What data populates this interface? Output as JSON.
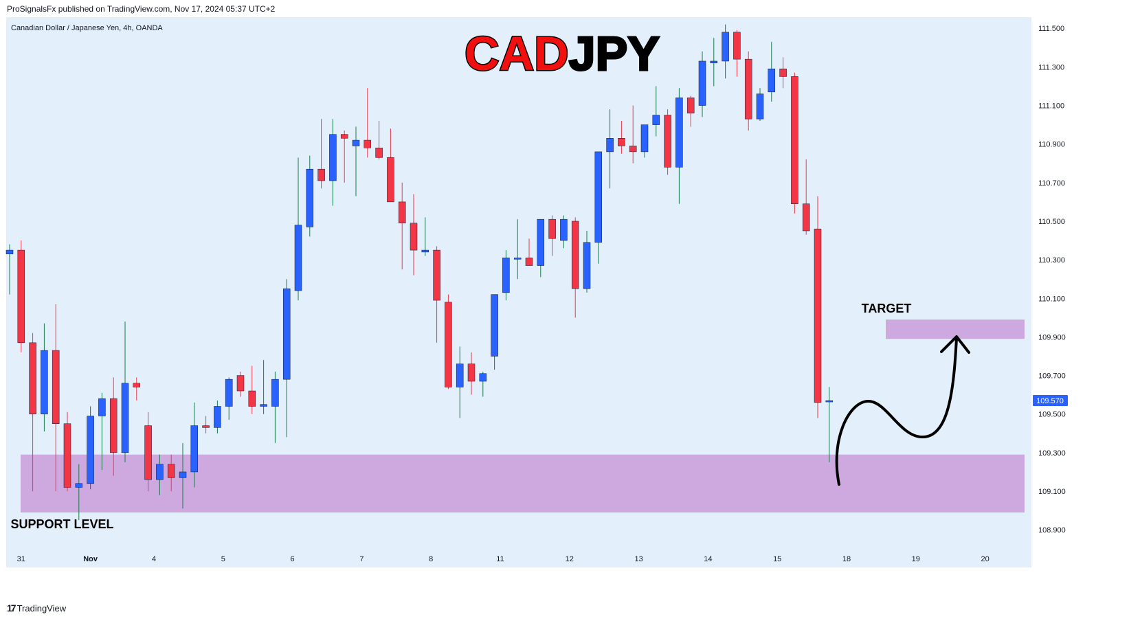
{
  "header": {
    "publish_line": "ProSignalsFx published on TradingView.com, Nov 17, 2024 05:37 UTC+2"
  },
  "footer": {
    "brand": "TradingView"
  },
  "colors": {
    "background": "#e3effa",
    "up": "#2962ff",
    "down": "#f23645",
    "zone": "#cda9e0",
    "price_tag": "#2962ff"
  },
  "chart_data": {
    "type": "candlestick",
    "symbol_line": "Canadian Dollar / Japanese Yen, 4h, OANDA",
    "title_parts": [
      {
        "text": "CAD",
        "color": "#f01010"
      },
      {
        "text": "JPY",
        "color": "#000000"
      }
    ],
    "y_ticks": [
      "111.500",
      "111.300",
      "111.100",
      "110.900",
      "110.700",
      "110.500",
      "110.300",
      "110.100",
      "109.900",
      "109.700",
      "109.500",
      "109.300",
      "109.100",
      "108.900"
    ],
    "ylim": [
      108.84,
      111.54
    ],
    "x_ticks": [
      {
        "label": "31",
        "index": 1
      },
      {
        "label": "Nov",
        "index": 7
      },
      {
        "label": "4",
        "index": 12.5
      },
      {
        "label": "5",
        "index": 18.5
      },
      {
        "label": "6",
        "index": 24.5
      },
      {
        "label": "7",
        "index": 30.5
      },
      {
        "label": "8",
        "index": 36.5
      },
      {
        "label": "11",
        "index": 42.5
      },
      {
        "label": "12",
        "index": 48.5
      },
      {
        "label": "13",
        "index": 54.5
      },
      {
        "label": "14",
        "index": 60.5
      },
      {
        "label": "15",
        "index": 66.5
      },
      {
        "label": "18",
        "index": 72.5
      },
      {
        "label": "19",
        "index": 78.5
      },
      {
        "label": "20",
        "index": 84.5
      }
    ],
    "candles": [
      {
        "o": 110.33,
        "h": 110.38,
        "l": 110.12,
        "c": 110.35
      },
      {
        "o": 110.35,
        "h": 110.4,
        "l": 109.82,
        "c": 109.87
      },
      {
        "o": 109.87,
        "h": 109.92,
        "l": 109.1,
        "c": 109.5
      },
      {
        "o": 109.5,
        "h": 109.97,
        "l": 109.41,
        "c": 109.83
      },
      {
        "o": 109.83,
        "h": 110.07,
        "l": 109.1,
        "c": 109.45
      },
      {
        "o": 109.45,
        "h": 109.51,
        "l": 109.1,
        "c": 109.12
      },
      {
        "o": 109.12,
        "h": 109.24,
        "l": 108.95,
        "c": 109.14
      },
      {
        "o": 109.14,
        "h": 109.54,
        "l": 109.11,
        "c": 109.49
      },
      {
        "o": 109.49,
        "h": 109.61,
        "l": 109.21,
        "c": 109.58
      },
      {
        "o": 109.58,
        "h": 109.69,
        "l": 109.18,
        "c": 109.3
      },
      {
        "o": 109.3,
        "h": 109.98,
        "l": 109.25,
        "c": 109.66
      },
      {
        "o": 109.66,
        "h": 109.69,
        "l": 109.57,
        "c": 109.64
      },
      {
        "o": 109.44,
        "h": 109.51,
        "l": 109.1,
        "c": 109.16
      },
      {
        "o": 109.16,
        "h": 109.29,
        "l": 109.08,
        "c": 109.24
      },
      {
        "o": 109.24,
        "h": 109.29,
        "l": 109.1,
        "c": 109.17
      },
      {
        "o": 109.17,
        "h": 109.35,
        "l": 109.01,
        "c": 109.2
      },
      {
        "o": 109.2,
        "h": 109.56,
        "l": 109.12,
        "c": 109.44
      },
      {
        "o": 109.44,
        "h": 109.49,
        "l": 109.4,
        "c": 109.43
      },
      {
        "o": 109.43,
        "h": 109.57,
        "l": 109.4,
        "c": 109.54
      },
      {
        "o": 109.54,
        "h": 109.69,
        "l": 109.47,
        "c": 109.68
      },
      {
        "o": 109.7,
        "h": 109.72,
        "l": 109.59,
        "c": 109.62
      },
      {
        "o": 109.62,
        "h": 109.75,
        "l": 109.5,
        "c": 109.54
      },
      {
        "o": 109.54,
        "h": 109.78,
        "l": 109.5,
        "c": 109.55
      },
      {
        "o": 109.54,
        "h": 109.72,
        "l": 109.35,
        "c": 109.68
      },
      {
        "o": 109.68,
        "h": 110.2,
        "l": 109.38,
        "c": 110.15
      },
      {
        "o": 110.14,
        "h": 110.83,
        "l": 110.09,
        "c": 110.48
      },
      {
        "o": 110.47,
        "h": 110.84,
        "l": 110.42,
        "c": 110.77
      },
      {
        "o": 110.77,
        "h": 111.03,
        "l": 110.67,
        "c": 110.71
      },
      {
        "o": 110.71,
        "h": 111.03,
        "l": 110.58,
        "c": 110.95
      },
      {
        "o": 110.95,
        "h": 110.97,
        "l": 110.7,
        "c": 110.93
      },
      {
        "o": 110.89,
        "h": 110.99,
        "l": 110.63,
        "c": 110.92
      },
      {
        "o": 110.92,
        "h": 111.19,
        "l": 110.83,
        "c": 110.88
      },
      {
        "o": 110.88,
        "h": 111.02,
        "l": 110.82,
        "c": 110.83
      },
      {
        "o": 110.83,
        "h": 110.98,
        "l": 110.6,
        "c": 110.6
      },
      {
        "o": 110.6,
        "h": 110.7,
        "l": 110.25,
        "c": 110.49
      },
      {
        "o": 110.49,
        "h": 110.64,
        "l": 110.22,
        "c": 110.35
      },
      {
        "o": 110.34,
        "h": 110.52,
        "l": 110.32,
        "c": 110.35
      },
      {
        "o": 110.35,
        "h": 110.37,
        "l": 109.87,
        "c": 110.09
      },
      {
        "o": 110.08,
        "h": 110.12,
        "l": 109.63,
        "c": 109.64
      },
      {
        "o": 109.64,
        "h": 109.85,
        "l": 109.48,
        "c": 109.76
      },
      {
        "o": 109.76,
        "h": 109.82,
        "l": 109.6,
        "c": 109.67
      },
      {
        "o": 109.67,
        "h": 109.72,
        "l": 109.59,
        "c": 109.71
      },
      {
        "o": 109.8,
        "h": 110.12,
        "l": 109.73,
        "c": 110.12
      },
      {
        "o": 110.13,
        "h": 110.35,
        "l": 110.09,
        "c": 110.31
      },
      {
        "o": 110.31,
        "h": 110.51,
        "l": 110.2,
        "c": 110.31
      },
      {
        "o": 110.31,
        "h": 110.41,
        "l": 110.27,
        "c": 110.27
      },
      {
        "o": 110.27,
        "h": 110.51,
        "l": 110.21,
        "c": 110.51
      },
      {
        "o": 110.51,
        "h": 110.53,
        "l": 110.32,
        "c": 110.41
      },
      {
        "o": 110.4,
        "h": 110.53,
        "l": 110.36,
        "c": 110.51
      },
      {
        "o": 110.5,
        "h": 110.52,
        "l": 110.0,
        "c": 110.15
      },
      {
        "o": 110.15,
        "h": 110.45,
        "l": 110.13,
        "c": 110.39
      },
      {
        "o": 110.39,
        "h": 110.86,
        "l": 110.28,
        "c": 110.86
      },
      {
        "o": 110.86,
        "h": 111.08,
        "l": 110.67,
        "c": 110.93
      },
      {
        "o": 110.93,
        "h": 111.02,
        "l": 110.85,
        "c": 110.89
      },
      {
        "o": 110.89,
        "h": 111.1,
        "l": 110.8,
        "c": 110.86
      },
      {
        "o": 110.86,
        "h": 111.0,
        "l": 110.83,
        "c": 111.0
      },
      {
        "o": 111.0,
        "h": 111.2,
        "l": 110.94,
        "c": 111.05
      },
      {
        "o": 111.05,
        "h": 111.08,
        "l": 110.74,
        "c": 110.78
      },
      {
        "o": 110.78,
        "h": 111.19,
        "l": 110.59,
        "c": 111.14
      },
      {
        "o": 111.14,
        "h": 111.15,
        "l": 110.99,
        "c": 111.06
      },
      {
        "o": 111.1,
        "h": 111.38,
        "l": 111.04,
        "c": 111.33
      },
      {
        "o": 111.32,
        "h": 111.45,
        "l": 111.2,
        "c": 111.33
      },
      {
        "o": 111.33,
        "h": 111.52,
        "l": 111.24,
        "c": 111.48
      },
      {
        "o": 111.48,
        "h": 111.49,
        "l": 111.25,
        "c": 111.34
      },
      {
        "o": 111.34,
        "h": 111.38,
        "l": 110.97,
        "c": 111.03
      },
      {
        "o": 111.03,
        "h": 111.19,
        "l": 111.02,
        "c": 111.16
      },
      {
        "o": 111.17,
        "h": 111.43,
        "l": 111.12,
        "c": 111.29
      },
      {
        "o": 111.29,
        "h": 111.35,
        "l": 111.19,
        "c": 111.25
      },
      {
        "o": 111.25,
        "h": 111.27,
        "l": 110.54,
        "c": 110.59
      },
      {
        "o": 110.59,
        "h": 110.82,
        "l": 110.43,
        "c": 110.45
      },
      {
        "o": 110.46,
        "h": 110.63,
        "l": 109.48,
        "c": 109.56
      },
      {
        "o": 109.57,
        "h": 109.64,
        "l": 109.25,
        "c": 109.57
      }
    ],
    "last_price": "109.570",
    "zones": [
      {
        "name": "support",
        "label": "SUPPORT LEVEL",
        "from": 108.99,
        "to": 109.29
      },
      {
        "name": "target",
        "label": "TARGET",
        "from": 109.89,
        "to": 109.99
      }
    ]
  }
}
